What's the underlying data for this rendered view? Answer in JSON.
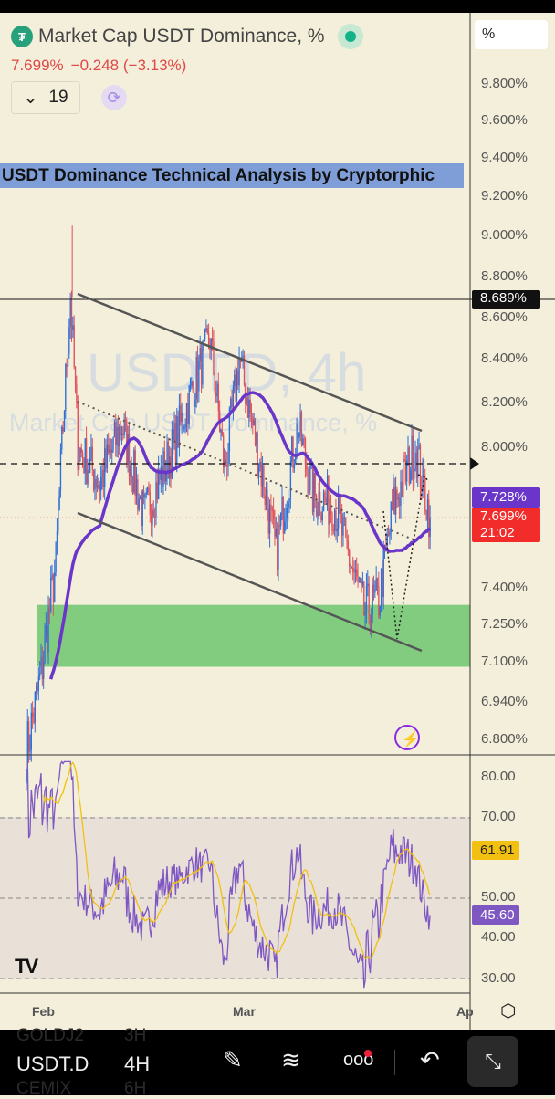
{
  "header": {
    "title": "Market Cap USDT Dominance, %",
    "last": "7.699%",
    "change": "−0.248 (−3.13%)",
    "indicator_count": "19",
    "logo_icon": "tether-logo-icon"
  },
  "banner": "USDT Dominance Technical Analysis by Cryptorphic",
  "watermark": {
    "symbol": "USDT.D, 4h",
    "name": "Market Cap USDT Dominance, %"
  },
  "scale_button": "%",
  "price_axis": [
    "9.800%",
    "9.600%",
    "9.400%",
    "9.200%",
    "9.000%",
    "8.800%",
    "8.600%",
    "8.400%",
    "8.200%",
    "8.000%",
    "7.400%",
    "7.250%",
    "7.100%",
    "6.940%",
    "6.800%"
  ],
  "price_tags": {
    "hline": "8.689%",
    "ma": "7.728%",
    "last": "7.699%",
    "countdown": "21:02"
  },
  "rsi_axis": [
    "80.00",
    "70.00",
    "50.00",
    "40.00",
    "30.00"
  ],
  "rsi_tags": {
    "ma": "61.91",
    "rsi": "45.60"
  },
  "time_axis": [
    "Feb",
    "Mar",
    "Ap"
  ],
  "colors": {
    "up": "#2f6fd6",
    "down": "#e0505a",
    "ma": "#6a35c9",
    "rsi": "#7e57c2",
    "rsi_ma": "#f2c011",
    "zone": "#5cc062",
    "last": "#f22b2b"
  },
  "toolbar": {
    "symbol": "USDT.D",
    "timeframe": "4H",
    "ghost_above": [
      "GOLDJ2",
      "3H"
    ],
    "ghost_below": [
      "CEMIX",
      "6H"
    ],
    "icons": [
      "draw-icon",
      "indicators-icon",
      "more-icon",
      "undo-icon",
      "fullscreen-exit-icon"
    ]
  },
  "chart_data": {
    "type": "candlestick",
    "title": "Market Cap USDT Dominance, %",
    "timeframe": "4h",
    "ylim": [
      6.8,
      9.8
    ],
    "key_closes": [
      {
        "date": "Jan 30",
        "value": 6.75
      },
      {
        "date": "Feb 1",
        "value": 7.05
      },
      {
        "date": "Feb 3",
        "value": 7.5
      },
      {
        "date": "Feb 5",
        "value": 8.7
      },
      {
        "date": "Feb 6",
        "value": 8.0
      },
      {
        "date": "Feb 9",
        "value": 7.85
      },
      {
        "date": "Feb 12",
        "value": 8.1
      },
      {
        "date": "Feb 15",
        "value": 7.7
      },
      {
        "date": "Feb 19",
        "value": 8.0
      },
      {
        "date": "Feb 24",
        "value": 8.5
      },
      {
        "date": "Feb 26",
        "value": 7.9
      },
      {
        "date": "Feb 28",
        "value": 8.4
      },
      {
        "date": "Mar 3",
        "value": 7.9
      },
      {
        "date": "Mar 5",
        "value": 7.55
      },
      {
        "date": "Mar 8",
        "value": 8.1
      },
      {
        "date": "Mar 10",
        "value": 7.8
      },
      {
        "date": "Mar 13",
        "value": 7.75
      },
      {
        "date": "Mar 17",
        "value": 7.3
      },
      {
        "date": "Mar 19",
        "value": 7.35
      },
      {
        "date": "Mar 21",
        "value": 7.75
      },
      {
        "date": "Mar 24",
        "value": 8.0
      },
      {
        "date": "Mar 26",
        "value": 7.699
      }
    ],
    "spike_high": {
      "date": "Feb 5",
      "value": 9.05
    },
    "horizontal_line": 8.689,
    "support_zone": [
      7.08,
      7.33
    ],
    "rsi": {
      "last": 45.6,
      "ma_last": 61.91,
      "levels": [
        70,
        50,
        30
      ]
    }
  }
}
